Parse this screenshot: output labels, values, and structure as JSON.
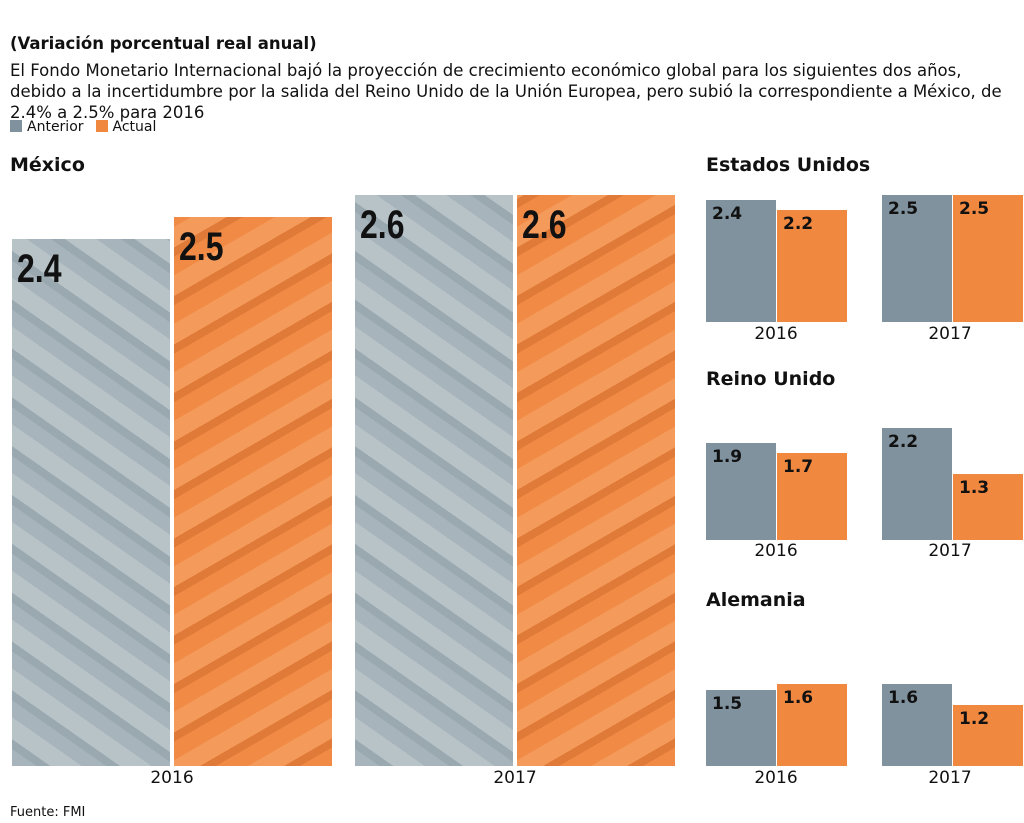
{
  "subtitle": "(Variación porcentual real anual)",
  "description": "El Fondo Monetario Internacional bajó la proyección de crecimiento económico global para los siguientes dos años, debido a la incertidumbre por la salida del Reino Unido de la Unión Europea, pero subió la correspondiente a México, de 2.4% a 2.5% para 2016",
  "legend": [
    {
      "label": "Anterior",
      "color": "#7f929e"
    },
    {
      "label": "Actual",
      "color": "#f08840"
    }
  ],
  "source": "Fuente: FMI",
  "chart_data": [
    {
      "type": "bar",
      "title": "México",
      "categories": [
        "2016",
        "2017"
      ],
      "series": [
        {
          "name": "Anterior",
          "values": [
            2.4,
            2.6
          ]
        },
        {
          "name": "Actual",
          "values": [
            2.5,
            2.6
          ]
        }
      ]
    },
    {
      "type": "bar",
      "title": "Estados Unidos",
      "categories": [
        "2016",
        "2017"
      ],
      "series": [
        {
          "name": "Anterior",
          "values": [
            2.4,
            2.5
          ]
        },
        {
          "name": "Actual",
          "values": [
            2.2,
            2.5
          ]
        }
      ]
    },
    {
      "type": "bar",
      "title": "Reino Unido",
      "categories": [
        "2016",
        "2017"
      ],
      "series": [
        {
          "name": "Anterior",
          "values": [
            1.9,
            2.2
          ]
        },
        {
          "name": "Actual",
          "values": [
            1.7,
            1.3
          ]
        }
      ]
    },
    {
      "type": "bar",
      "title": "Alemania",
      "categories": [
        "2016",
        "2017"
      ],
      "series": [
        {
          "name": "Anterior",
          "values": [
            1.5,
            1.6
          ]
        },
        {
          "name": "Actual",
          "values": [
            1.6,
            1.2
          ]
        }
      ]
    }
  ]
}
